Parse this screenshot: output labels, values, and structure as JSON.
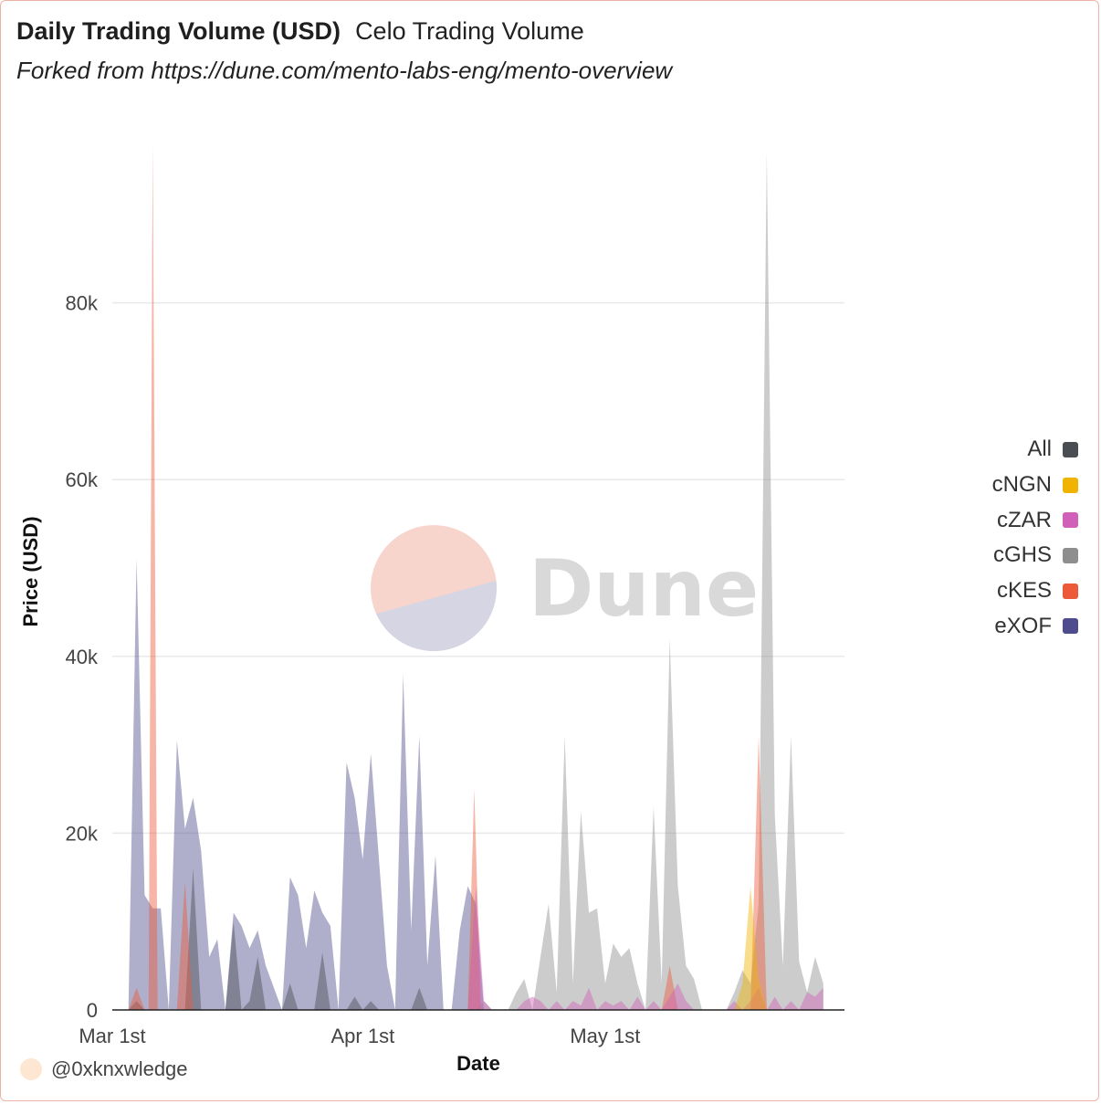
{
  "header": {
    "title": "Daily Trading Volume (USD)",
    "query_name": "Celo Trading Volume",
    "subtitle": "Forked from https://dune.com/mento-labs-eng/mento-overview"
  },
  "watermark": {
    "text": "Dune",
    "colors": [
      "#f8d5cc",
      "#d6d5e4",
      "#d9d9d9"
    ]
  },
  "footer": {
    "author": "@0xknxwledge"
  },
  "legend": [
    {
      "label": "All",
      "color": "#4a4d52"
    },
    {
      "label": "cNGN",
      "color": "#f0b400"
    },
    {
      "label": "cZAR",
      "color": "#d060b8"
    },
    {
      "label": "cGHS",
      "color": "#8e8e8e"
    },
    {
      "label": "cKES",
      "color": "#ec5a3a"
    },
    {
      "label": "eXOF",
      "color": "#4e4c8c"
    }
  ],
  "chart_data": {
    "type": "area",
    "title": "Daily Trading Volume (USD)",
    "xlabel": "Date",
    "ylabel": "Price (USD)",
    "ylim": [
      0,
      100000
    ],
    "y_ticks": [
      "0",
      "20k",
      "40k",
      "60k",
      "80k"
    ],
    "y_tick_values": [
      0,
      20000,
      40000,
      60000,
      80000
    ],
    "x_ticks": [
      "Mar 1st",
      "Apr 1st",
      "May 1st"
    ],
    "x_tick_days": [
      0,
      31,
      61
    ],
    "x_range_days": [
      0,
      91
    ],
    "grid": true,
    "legend_position": "right",
    "series": [
      {
        "name": "eXOF",
        "color": "#4e4c8c",
        "points": [
          [
            2,
            0
          ],
          [
            3,
            51000
          ],
          [
            4,
            13000
          ],
          [
            5,
            11500
          ],
          [
            6,
            11500
          ],
          [
            7,
            0
          ],
          [
            8,
            30500
          ],
          [
            9,
            20500
          ],
          [
            10,
            24000
          ],
          [
            11,
            18000
          ],
          [
            12,
            6000
          ],
          [
            13,
            8000
          ],
          [
            14,
            0
          ],
          [
            15,
            11000
          ],
          [
            16,
            9500
          ],
          [
            17,
            7000
          ],
          [
            18,
            9000
          ],
          [
            19,
            5000
          ],
          [
            20,
            2500
          ],
          [
            21,
            0
          ],
          [
            22,
            15000
          ],
          [
            23,
            13000
          ],
          [
            24,
            7000
          ],
          [
            25,
            13500
          ],
          [
            26,
            11000
          ],
          [
            27,
            9500
          ],
          [
            28,
            0
          ],
          [
            29,
            28000
          ],
          [
            30,
            24000
          ],
          [
            31,
            17000
          ],
          [
            32,
            29000
          ],
          [
            33,
            17000
          ],
          [
            34,
            5000
          ],
          [
            35,
            0
          ],
          [
            36,
            38000
          ],
          [
            37,
            9000
          ],
          [
            38,
            31000
          ],
          [
            39,
            5000
          ],
          [
            40,
            17500
          ],
          [
            41,
            0
          ],
          [
            42,
            0
          ],
          [
            43,
            9000
          ],
          [
            44,
            14000
          ],
          [
            45,
            12000
          ],
          [
            46,
            0
          ]
        ]
      },
      {
        "name": "cGHS",
        "color": "#8e8e8e",
        "points": [
          [
            45,
            0
          ],
          [
            46,
            1000
          ],
          [
            47,
            0
          ],
          [
            48,
            0
          ],
          [
            49,
            0
          ],
          [
            50,
            2000
          ],
          [
            51,
            3500
          ],
          [
            52,
            0
          ],
          [
            53,
            6000
          ],
          [
            54,
            12000
          ],
          [
            55,
            2000
          ],
          [
            56,
            31000
          ],
          [
            57,
            3000
          ],
          [
            58,
            22500
          ],
          [
            59,
            11000
          ],
          [
            60,
            11500
          ],
          [
            61,
            3000
          ],
          [
            62,
            7500
          ],
          [
            63,
            6000
          ],
          [
            64,
            7000
          ],
          [
            65,
            3000
          ],
          [
            66,
            0
          ],
          [
            67,
            23000
          ],
          [
            68,
            3000
          ],
          [
            69,
            42000
          ],
          [
            70,
            14000
          ],
          [
            71,
            5000
          ],
          [
            72,
            3500
          ],
          [
            73,
            0
          ],
          [
            74,
            0
          ],
          [
            75,
            0
          ],
          [
            76,
            0
          ],
          [
            77,
            2000
          ],
          [
            78,
            4500
          ],
          [
            79,
            3000
          ],
          [
            80,
            12000
          ],
          [
            81,
            97000
          ],
          [
            82,
            22000
          ],
          [
            83,
            5000
          ],
          [
            84,
            31000
          ],
          [
            85,
            5500
          ],
          [
            86,
            2000
          ],
          [
            87,
            6000
          ],
          [
            88,
            3000
          ]
        ]
      },
      {
        "name": "All",
        "color": "#4a4d52",
        "points": [
          [
            2,
            0
          ],
          [
            3,
            1000
          ],
          [
            4,
            0
          ],
          [
            9,
            0
          ],
          [
            10,
            16000
          ],
          [
            11,
            0
          ],
          [
            14,
            0
          ],
          [
            15,
            10000
          ],
          [
            16,
            0
          ],
          [
            17,
            1000
          ],
          [
            18,
            6000
          ],
          [
            19,
            0
          ],
          [
            21,
            0
          ],
          [
            22,
            3000
          ],
          [
            23,
            0
          ],
          [
            25,
            0
          ],
          [
            26,
            6500
          ],
          [
            27,
            0
          ],
          [
            29,
            0
          ],
          [
            30,
            1500
          ],
          [
            31,
            0
          ],
          [
            32,
            1000
          ],
          [
            33,
            0
          ],
          [
            37,
            0
          ],
          [
            38,
            2500
          ],
          [
            39,
            0
          ]
        ]
      },
      {
        "name": "cKES",
        "color": "#ec5a3a",
        "points": [
          [
            2,
            0
          ],
          [
            3,
            2500
          ],
          [
            4,
            0
          ],
          [
            4.5,
            0
          ],
          [
            5,
            98000
          ],
          [
            5.6,
            0
          ],
          [
            8,
            0
          ],
          [
            9,
            14500
          ],
          [
            10,
            0
          ],
          [
            44,
            0
          ],
          [
            44.8,
            25000
          ],
          [
            45.6,
            0
          ],
          [
            68,
            0
          ],
          [
            69,
            5000
          ],
          [
            70,
            0
          ],
          [
            79,
            0
          ],
          [
            80,
            31000
          ],
          [
            81,
            0
          ]
        ]
      },
      {
        "name": "cZAR",
        "color": "#d060b8",
        "points": [
          [
            44,
            0
          ],
          [
            45,
            14000
          ],
          [
            46,
            1000
          ],
          [
            47,
            0
          ],
          [
            50,
            0
          ],
          [
            51,
            1000
          ],
          [
            52,
            1500
          ],
          [
            53,
            1000
          ],
          [
            54,
            0
          ],
          [
            55,
            1000
          ],
          [
            56,
            0
          ],
          [
            57,
            1000
          ],
          [
            58,
            500
          ],
          [
            59,
            2500
          ],
          [
            60,
            0
          ],
          [
            61,
            1000
          ],
          [
            62,
            500
          ],
          [
            63,
            1000
          ],
          [
            64,
            0
          ],
          [
            65,
            1500
          ],
          [
            66,
            0
          ],
          [
            67,
            1000
          ],
          [
            68,
            0
          ],
          [
            69,
            1500
          ],
          [
            70,
            3000
          ],
          [
            71,
            1000
          ],
          [
            72,
            0
          ],
          [
            76,
            0
          ],
          [
            77,
            1000
          ],
          [
            78,
            0
          ],
          [
            79,
            1000
          ],
          [
            80,
            2500
          ],
          [
            81,
            0
          ],
          [
            82,
            1500
          ],
          [
            83,
            0
          ],
          [
            84,
            1000
          ],
          [
            85,
            0
          ],
          [
            86,
            2000
          ],
          [
            87,
            1500
          ],
          [
            88,
            2500
          ]
        ]
      },
      {
        "name": "cNGN",
        "color": "#f0b400",
        "points": [
          [
            77,
            0
          ],
          [
            78,
            3000
          ],
          [
            79,
            14000
          ],
          [
            80,
            3500
          ],
          [
            81,
            0
          ]
        ]
      }
    ]
  }
}
